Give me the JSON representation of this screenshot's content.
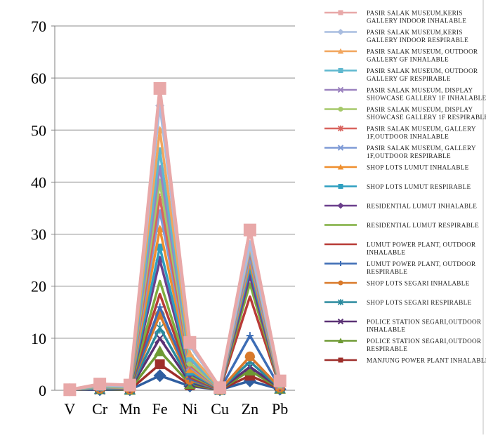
{
  "chart_data": {
    "type": "line",
    "title": "",
    "xlabel": "",
    "ylabel": "",
    "categories": [
      "V",
      "Cr",
      "Mn",
      "Fe",
      "Ni",
      "Cu",
      "Zn",
      "Pb"
    ],
    "ylim": [
      0,
      70
    ],
    "yticks": [
      0,
      10,
      20,
      30,
      40,
      50,
      60,
      70
    ],
    "grid": "horizontal",
    "legend_position": "right",
    "series": [
      {
        "name": "PASIR SALAK MUSEUM,KERIS GALLERY INDOOR INHALABLE",
        "color": "#e8a8a8",
        "marker": "square",
        "values": [
          0.1,
          1.2,
          1.0,
          58.0,
          9.2,
          0.5,
          30.8,
          1.8
        ]
      },
      {
        "name": "PASIR SALAK MUSEUM,KERIS GALLERY INDOOR RESPIRABLE",
        "color": "#a9bde0",
        "marker": "diamond",
        "values": [
          0.1,
          1.0,
          0.8,
          54.7,
          8.5,
          0.4,
          28.0,
          1.5
        ]
      },
      {
        "name": "PASIR SALAK MUSEUM, OUTDOOR GALLERY GF INHALABLE",
        "color": "#f2a65e",
        "marker": "triangle",
        "values": [
          0.1,
          0.9,
          0.7,
          50.0,
          7.0,
          0.4,
          27.5,
          1.3
        ]
      },
      {
        "name": "PASIR SALAK MUSEUM, OUTDOOR GALLERY GF RESPIRABLE",
        "color": "#5fb8cf",
        "marker": "square",
        "values": [
          0.1,
          0.8,
          0.6,
          46.0,
          6.2,
          0.3,
          27.0,
          1.2
        ]
      },
      {
        "name": "PASIR SALAK MUSEUM, DISPLAY SHOWCASE GALLERY 1F INHALABLE",
        "color": "#9b82bf",
        "marker": "cross",
        "values": [
          0.1,
          0.8,
          0.6,
          43.0,
          6.0,
          0.3,
          27.8,
          1.2
        ]
      },
      {
        "name": "PASIR SALAK MUSEUM, DISPLAY SHOWCASE GALLERY 1F RESPIRABLE",
        "color": "#a6c96a",
        "marker": "circle",
        "values": [
          0.1,
          0.7,
          0.5,
          40.0,
          5.2,
          0.3,
          27.2,
          1.0
        ]
      },
      {
        "name": "PASIR SALAK MUSEUM, GALLERY 1F,OUTDOOR INHALABLE",
        "color": "#d9645f",
        "marker": "star",
        "values": [
          0.1,
          0.7,
          0.5,
          37.0,
          4.8,
          0.3,
          26.5,
          1.0
        ]
      },
      {
        "name": "PASIR SALAK MUSEUM, GALLERY 1F,OUTDOOR RESPIRABLE",
        "color": "#7f9bd6",
        "marker": "cross",
        "values": [
          0.1,
          0.6,
          0.5,
          34.5,
          4.5,
          0.2,
          25.5,
          0.9
        ]
      },
      {
        "name": "SHOP LOTS LUMUT INHALABLE",
        "color": "#ef8f2e",
        "marker": "triangle",
        "values": [
          0.1,
          0.6,
          0.4,
          31.0,
          4.0,
          0.2,
          24.5,
          0.8
        ]
      },
      {
        "name": "SHOP LOTS LUMUT RESPIRABLE",
        "color": "#2f9fc0",
        "marker": "square",
        "values": [
          0.1,
          0.5,
          0.4,
          27.5,
          3.5,
          0.2,
          23.5,
          0.8
        ]
      },
      {
        "name": "RESIDENTIAL LUMUT INHALABLE",
        "color": "#6b3f8c",
        "marker": "diamond",
        "values": [
          0.1,
          0.5,
          0.3,
          25.0,
          3.2,
          0.2,
          22.0,
          0.7
        ]
      },
      {
        "name": "RESIDENTIAL LUMUT RESPIRABLE",
        "color": "#7fae3f",
        "marker": "none",
        "values": [
          0.1,
          0.4,
          0.3,
          21.0,
          2.8,
          0.2,
          20.5,
          0.6
        ]
      },
      {
        "name": "LUMUT POWER PLANT, OUTDOOR INHALABLE",
        "color": "#b83b37",
        "marker": "none",
        "values": [
          0.1,
          0.4,
          0.3,
          18.5,
          2.5,
          0.1,
          18.0,
          0.6
        ]
      },
      {
        "name": "LUMUT POWER PLANT, OUTDOOR RESPIRABLE",
        "color": "#3d6db5",
        "marker": "plus",
        "values": [
          0.1,
          0.3,
          0.2,
          16.0,
          2.2,
          0.1,
          10.5,
          0.5
        ]
      },
      {
        "name": "SHOP LOTS SEGARI INHALABLE",
        "color": "#d97a2b",
        "marker": "circle",
        "values": [
          0.1,
          0.3,
          0.2,
          14.5,
          2.0,
          0.1,
          6.5,
          0.5
        ]
      },
      {
        "name": "SHOP LOTS SEGARI RESPIRABLE",
        "color": "#2a8a9e",
        "marker": "star",
        "values": [
          0.1,
          0.3,
          0.2,
          12.0,
          1.8,
          0.1,
          5.5,
          0.4
        ]
      },
      {
        "name": "POLICE STATION SEGARI,OUTDOOR INHALABLE",
        "color": "#5a3175",
        "marker": "cross",
        "values": [
          0.1,
          0.2,
          0.2,
          10.0,
          1.5,
          0.1,
          4.5,
          0.4
        ]
      },
      {
        "name": "POLICE STATION SEGARI,OUTDOOR RESPIRABLE",
        "color": "#6e9a34",
        "marker": "triangle",
        "values": [
          0.1,
          0.2,
          0.1,
          7.5,
          1.2,
          0.1,
          3.8,
          0.3
        ]
      },
      {
        "name": "MANJUNG POWER PLANT INHALABLE",
        "color": "#9e2f2b",
        "marker": "square",
        "values": [
          0.1,
          0.2,
          0.1,
          5.0,
          1.0,
          0.1,
          2.8,
          0.3
        ]
      },
      {
        "name": "",
        "color": "#2f5ea0",
        "marker": "diamond",
        "values": [
          0.1,
          0.1,
          0.1,
          2.8,
          0.8,
          0.1,
          1.8,
          0.2
        ]
      }
    ]
  }
}
